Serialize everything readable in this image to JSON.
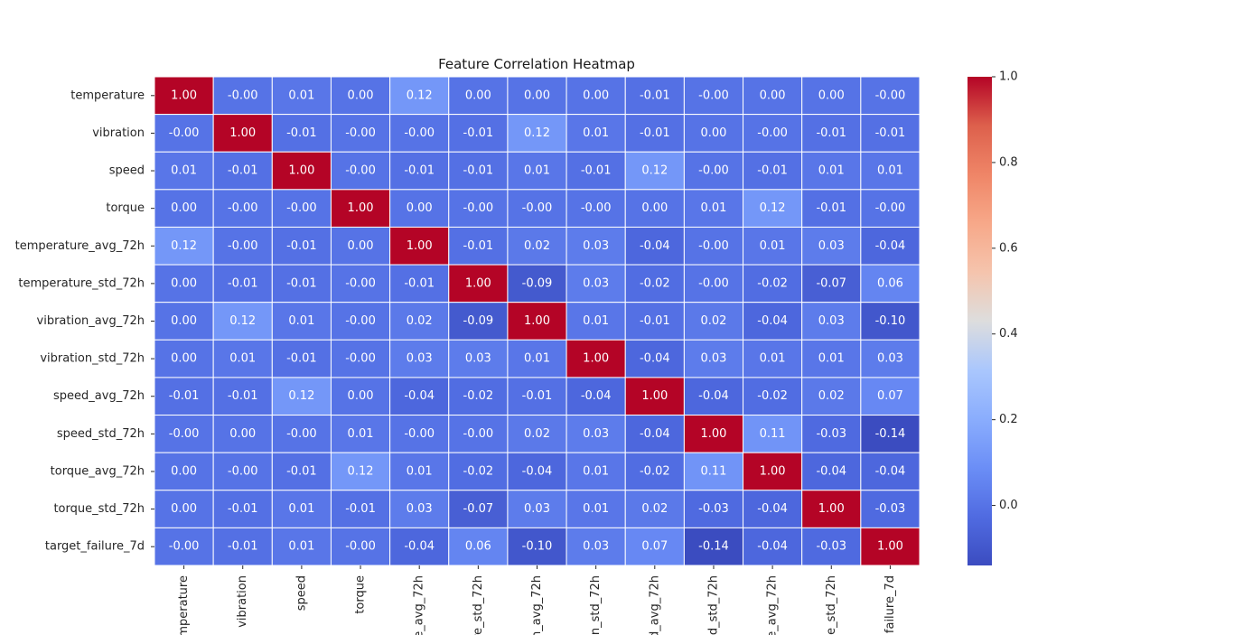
{
  "chart_data": {
    "type": "heatmap",
    "title": "Feature Correlation Heatmap",
    "labels": [
      "temperature",
      "vibration",
      "speed",
      "torque",
      "temperature_avg_72h",
      "temperature_std_72h",
      "vibration_avg_72h",
      "vibration_std_72h",
      "speed_avg_72h",
      "speed_std_72h",
      "torque_avg_72h",
      "torque_std_72h",
      "target_failure_7d"
    ],
    "x_tick_labels_visible": [
      "emperature",
      "vibration",
      "speed",
      "torque",
      "e_avg_72h",
      "re_std_72h",
      "n_avg_72h",
      "n_std_72h",
      "d_avg_72h",
      "d_std_72h",
      "e_avg_72h",
      "e_std_72h",
      "failure_7d"
    ],
    "values": [
      [
        1.0,
        -0.0,
        0.01,
        0.0,
        0.12,
        0.0,
        0.0,
        0.0,
        -0.01,
        -0.0,
        0.0,
        0.0,
        -0.0
      ],
      [
        -0.0,
        1.0,
        -0.01,
        -0.0,
        -0.0,
        -0.01,
        0.12,
        0.01,
        -0.01,
        0.0,
        -0.0,
        -0.01,
        -0.01
      ],
      [
        0.01,
        -0.01,
        1.0,
        -0.0,
        -0.01,
        -0.01,
        0.01,
        -0.01,
        0.12,
        -0.0,
        -0.01,
        0.01,
        0.01
      ],
      [
        0.0,
        -0.0,
        -0.0,
        1.0,
        0.0,
        -0.0,
        -0.0,
        -0.0,
        0.0,
        0.01,
        0.12,
        -0.01,
        -0.0
      ],
      [
        0.12,
        -0.0,
        -0.01,
        0.0,
        1.0,
        -0.01,
        0.02,
        0.03,
        -0.04,
        -0.0,
        0.01,
        0.03,
        -0.04
      ],
      [
        0.0,
        -0.01,
        -0.01,
        -0.0,
        -0.01,
        1.0,
        -0.09,
        0.03,
        -0.02,
        -0.0,
        -0.02,
        -0.07,
        0.06
      ],
      [
        0.0,
        0.12,
        0.01,
        -0.0,
        0.02,
        -0.09,
        1.0,
        0.01,
        -0.01,
        0.02,
        -0.04,
        0.03,
        -0.1
      ],
      [
        0.0,
        0.01,
        -0.01,
        -0.0,
        0.03,
        0.03,
        0.01,
        1.0,
        -0.04,
        0.03,
        0.01,
        0.01,
        0.03
      ],
      [
        -0.01,
        -0.01,
        0.12,
        0.0,
        -0.04,
        -0.02,
        -0.01,
        -0.04,
        1.0,
        -0.04,
        -0.02,
        0.02,
        0.07
      ],
      [
        -0.0,
        0.0,
        -0.0,
        0.01,
        -0.0,
        -0.0,
        0.02,
        0.03,
        -0.04,
        1.0,
        0.11,
        -0.03,
        -0.14
      ],
      [
        0.0,
        -0.0,
        -0.01,
        0.12,
        0.01,
        -0.02,
        -0.04,
        0.01,
        -0.02,
        0.11,
        1.0,
        -0.04,
        -0.04
      ],
      [
        0.0,
        -0.01,
        0.01,
        -0.01,
        0.03,
        -0.07,
        0.03,
        0.01,
        0.02,
        -0.03,
        -0.04,
        1.0,
        -0.03
      ],
      [
        -0.0,
        -0.01,
        0.01,
        -0.0,
        -0.04,
        0.06,
        -0.1,
        0.03,
        0.07,
        -0.14,
        -0.04,
        -0.03,
        1.0
      ]
    ],
    "cell_value_labels": [
      [
        "1.00",
        "-0.00",
        "0.01",
        "0.00",
        "0.12",
        "0.00",
        "0.00",
        "0.00",
        "-0.01",
        "-0.00",
        "0.00",
        "0.00",
        "-0.00"
      ],
      [
        "-0.00",
        "1.00",
        "-0.01",
        "-0.00",
        "-0.00",
        "-0.01",
        "0.12",
        "0.01",
        "-0.01",
        "0.00",
        "-0.00",
        "-0.01",
        "-0.01"
      ],
      [
        "0.01",
        "-0.01",
        "1.00",
        "-0.00",
        "-0.01",
        "-0.01",
        "0.01",
        "-0.01",
        "0.12",
        "-0.00",
        "-0.01",
        "0.01",
        "0.01"
      ],
      [
        "0.00",
        "-0.00",
        "-0.00",
        "1.00",
        "0.00",
        "-0.00",
        "-0.00",
        "-0.00",
        "0.00",
        "0.01",
        "0.12",
        "-0.01",
        "-0.00"
      ],
      [
        "0.12",
        "-0.00",
        "-0.01",
        "0.00",
        "1.00",
        "-0.01",
        "0.02",
        "0.03",
        "-0.04",
        "-0.00",
        "0.01",
        "0.03",
        "-0.04"
      ],
      [
        "0.00",
        "-0.01",
        "-0.01",
        "-0.00",
        "-0.01",
        "1.00",
        "-0.09",
        "0.03",
        "-0.02",
        "-0.00",
        "-0.02",
        "-0.07",
        "0.06"
      ],
      [
        "0.00",
        "0.12",
        "0.01",
        "-0.00",
        "0.02",
        "-0.09",
        "1.00",
        "0.01",
        "-0.01",
        "0.02",
        "-0.04",
        "0.03",
        "-0.10"
      ],
      [
        "0.00",
        "0.01",
        "-0.01",
        "-0.00",
        "0.03",
        "0.03",
        "0.01",
        "1.00",
        "-0.04",
        "0.03",
        "0.01",
        "0.01",
        "0.03"
      ],
      [
        "-0.01",
        "-0.01",
        "0.12",
        "0.00",
        "-0.04",
        "-0.02",
        "-0.01",
        "-0.04",
        "1.00",
        "-0.04",
        "-0.02",
        "0.02",
        "0.07"
      ],
      [
        "-0.00",
        "0.00",
        "-0.00",
        "0.01",
        "-0.00",
        "-0.00",
        "0.02",
        "0.03",
        "-0.04",
        "1.00",
        "0.11",
        "-0.03",
        "-0.14"
      ],
      [
        "0.00",
        "-0.00",
        "-0.01",
        "0.12",
        "0.01",
        "-0.02",
        "-0.04",
        "0.01",
        "-0.02",
        "0.11",
        "1.00",
        "-0.04",
        "-0.04"
      ],
      [
        "0.00",
        "-0.01",
        "0.01",
        "-0.01",
        "0.03",
        "-0.07",
        "0.03",
        "0.01",
        "0.02",
        "-0.03",
        "-0.04",
        "1.00",
        "-0.03"
      ],
      [
        "-0.00",
        "-0.01",
        "0.01",
        "-0.00",
        "-0.04",
        "0.06",
        "-0.10",
        "0.03",
        "0.07",
        "-0.14",
        "-0.04",
        "-0.03",
        "1.00"
      ]
    ],
    "colormap": "coolwarm",
    "color_range": [
      -0.14,
      1.0
    ],
    "colorbar_ticks": [
      0.0,
      0.2,
      0.4,
      0.6,
      0.8,
      1.0
    ],
    "colorbar_tick_labels": [
      "0.0",
      "0.2",
      "0.4",
      "0.6",
      "0.8",
      "1.0"
    ],
    "annotations": true,
    "annotation_format": "2 decimal places"
  }
}
